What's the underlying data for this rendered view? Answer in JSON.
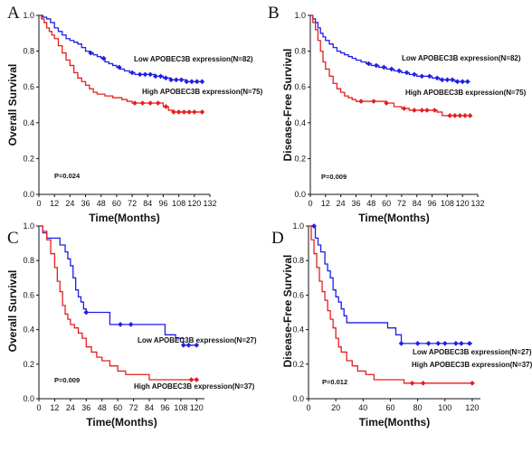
{
  "colors": {
    "low": "#1f1fe6",
    "high": "#e61f1f",
    "axis": "#111111"
  },
  "chart_data": [
    {
      "panel": "A",
      "type": "line",
      "step": true,
      "xlabel": "Time(Months)",
      "ylabel": "Overall Survival",
      "xlim": [
        0,
        132
      ],
      "ylim": [
        0,
        1.0
      ],
      "xticks": [
        0,
        12,
        24,
        36,
        48,
        60,
        72,
        84,
        96,
        108,
        120,
        132
      ],
      "yticks": [
        0.0,
        0.2,
        0.4,
        0.6,
        0.8,
        1.0
      ],
      "ytick_decimals": 1,
      "pvalue": "P=0.024",
      "series": [
        {
          "name": "Low APOBEC3B expression(N=82)",
          "color_key": "low",
          "x": [
            0,
            3,
            6,
            9,
            12,
            15,
            18,
            21,
            24,
            27,
            30,
            33,
            36,
            39,
            42,
            45,
            48,
            51,
            54,
            57,
            60,
            63,
            66,
            70,
            74,
            78,
            84,
            90,
            96,
            102,
            108,
            114,
            120,
            126
          ],
          "y": [
            1.0,
            0.99,
            0.98,
            0.96,
            0.93,
            0.91,
            0.89,
            0.87,
            0.86,
            0.85,
            0.84,
            0.82,
            0.8,
            0.79,
            0.78,
            0.77,
            0.76,
            0.74,
            0.73,
            0.72,
            0.71,
            0.7,
            0.69,
            0.68,
            0.67,
            0.67,
            0.67,
            0.66,
            0.65,
            0.64,
            0.64,
            0.63,
            0.63,
            0.63
          ],
          "censored_x": [
            40,
            50,
            62,
            72,
            78,
            82,
            86,
            90,
            94,
            98,
            102,
            106,
            110,
            114,
            118,
            122,
            126
          ]
        },
        {
          "name": "High APOBEC3B expression(N=75)",
          "color_key": "high",
          "x": [
            0,
            2,
            4,
            6,
            8,
            10,
            12,
            15,
            18,
            21,
            24,
            27,
            30,
            33,
            36,
            39,
            42,
            45,
            48,
            51,
            54,
            57,
            60,
            64,
            68,
            72,
            76,
            84,
            96,
            100,
            104,
            120,
            126
          ],
          "y": [
            1.0,
            0.98,
            0.96,
            0.93,
            0.91,
            0.89,
            0.87,
            0.83,
            0.79,
            0.75,
            0.72,
            0.68,
            0.65,
            0.63,
            0.61,
            0.59,
            0.57,
            0.56,
            0.56,
            0.55,
            0.55,
            0.54,
            0.54,
            0.53,
            0.52,
            0.51,
            0.51,
            0.51,
            0.49,
            0.47,
            0.46,
            0.46,
            0.46
          ],
          "censored_x": [
            74,
            80,
            86,
            92,
            98,
            104,
            108,
            112,
            116,
            120,
            126
          ]
        }
      ]
    },
    {
      "panel": "B",
      "type": "line",
      "step": true,
      "xlabel": "Time(Months)",
      "ylabel": "Disease-Free Survival",
      "xlim": [
        0,
        132
      ],
      "ylim": [
        0,
        1.0
      ],
      "xticks": [
        0,
        12,
        24,
        36,
        48,
        60,
        72,
        84,
        96,
        108,
        120,
        132
      ],
      "yticks": [
        0.0,
        0.2,
        0.4,
        0.6,
        0.8,
        1.0
      ],
      "ytick_decimals": 1,
      "pvalue": "P=0.009",
      "series": [
        {
          "name": "Low APOBEC3B expression(N=82)",
          "color_key": "low",
          "x": [
            0,
            2,
            4,
            6,
            8,
            10,
            12,
            15,
            18,
            21,
            24,
            27,
            30,
            33,
            36,
            40,
            44,
            48,
            54,
            60,
            66,
            72,
            78,
            84,
            90,
            96,
            102,
            108,
            114,
            120,
            126
          ],
          "y": [
            1.0,
            0.98,
            0.96,
            0.93,
            0.9,
            0.88,
            0.86,
            0.84,
            0.82,
            0.8,
            0.79,
            0.78,
            0.77,
            0.76,
            0.75,
            0.74,
            0.73,
            0.72,
            0.71,
            0.7,
            0.69,
            0.68,
            0.67,
            0.66,
            0.66,
            0.65,
            0.64,
            0.64,
            0.63,
            0.63,
            0.63
          ],
          "censored_x": [
            46,
            52,
            58,
            64,
            70,
            76,
            82,
            88,
            94,
            100,
            104,
            108,
            112,
            116,
            120,
            124
          ]
        },
        {
          "name": "High APOBEC3B expression(N=75)",
          "color_key": "high",
          "x": [
            0,
            2,
            4,
            6,
            8,
            10,
            12,
            15,
            18,
            21,
            24,
            27,
            30,
            33,
            36,
            40,
            44,
            48,
            54,
            60,
            66,
            72,
            78,
            84,
            90,
            96,
            100,
            104,
            110,
            126
          ],
          "y": [
            1.0,
            0.96,
            0.92,
            0.86,
            0.8,
            0.74,
            0.7,
            0.66,
            0.62,
            0.59,
            0.57,
            0.55,
            0.54,
            0.53,
            0.52,
            0.52,
            0.52,
            0.52,
            0.52,
            0.51,
            0.49,
            0.48,
            0.47,
            0.47,
            0.47,
            0.47,
            0.46,
            0.44,
            0.44,
            0.44
          ],
          "censored_x": [
            40,
            50,
            60,
            74,
            82,
            88,
            92,
            98,
            110,
            114,
            118,
            122,
            126
          ]
        }
      ]
    },
    {
      "panel": "C",
      "type": "line",
      "step": true,
      "xlabel": "Time(Months)",
      "ylabel": "Overall Survival",
      "xlim": [
        0,
        126
      ],
      "ylim": [
        0,
        1.0
      ],
      "xticks": [
        0,
        12,
        24,
        36,
        48,
        60,
        72,
        84,
        96,
        108,
        120
      ],
      "yticks": [
        0.0,
        0.2,
        0.4,
        0.6,
        0.8,
        1.0
      ],
      "ytick_decimals": 1,
      "pvalue": "P=0.009",
      "series": [
        {
          "name": "Low  APOBEC3B expression(N=27)",
          "color_key": "low",
          "x": [
            0,
            3,
            6,
            9,
            12,
            16,
            20,
            22,
            24,
            26,
            28,
            30,
            32,
            34,
            36,
            40,
            44,
            50,
            54,
            60,
            66,
            72,
            78,
            84,
            90,
            96,
            100,
            104,
            110,
            120
          ],
          "y": [
            1.0,
            0.96,
            0.93,
            0.93,
            0.93,
            0.89,
            0.85,
            0.81,
            0.77,
            0.7,
            0.63,
            0.59,
            0.56,
            0.52,
            0.5,
            0.5,
            0.5,
            0.5,
            0.43,
            0.43,
            0.43,
            0.43,
            0.43,
            0.43,
            0.43,
            0.37,
            0.37,
            0.35,
            0.31,
            0.31
          ],
          "censored_x": [
            36,
            62,
            70,
            110,
            114,
            120
          ]
        },
        {
          "name": "High APOBEC3B expression(N=37)",
          "color_key": "high",
          "x": [
            0,
            3,
            6,
            9,
            12,
            14,
            16,
            18,
            20,
            22,
            24,
            27,
            30,
            33,
            36,
            40,
            44,
            48,
            54,
            60,
            66,
            72,
            78,
            84,
            90,
            96,
            100,
            104,
            110,
            120
          ],
          "y": [
            1.0,
            0.97,
            0.92,
            0.84,
            0.76,
            0.68,
            0.62,
            0.54,
            0.49,
            0.46,
            0.43,
            0.41,
            0.38,
            0.35,
            0.3,
            0.27,
            0.24,
            0.22,
            0.19,
            0.16,
            0.14,
            0.14,
            0.14,
            0.11,
            0.11,
            0.11,
            0.11,
            0.11,
            0.11,
            0.11
          ],
          "censored_x": [
            116,
            120
          ]
        }
      ]
    },
    {
      "panel": "D",
      "type": "line",
      "step": true,
      "xlabel": "Time(Months)",
      "ylabel": "Disease-Free Survival",
      "xlim": [
        0,
        126
      ],
      "ylim": [
        0,
        1.0
      ],
      "xticks": [
        0,
        20,
        40,
        60,
        80,
        100,
        120
      ],
      "yticks": [
        0.0,
        0.2,
        0.4,
        0.6,
        0.8,
        1.0
      ],
      "ytick_decimals": 1,
      "pvalue": "P=0.012",
      "series": [
        {
          "name": "Low APOBEC3B expression(N=27)",
          "color_key": "low",
          "x": [
            0,
            3,
            5,
            7,
            9,
            12,
            14,
            16,
            18,
            20,
            22,
            24,
            26,
            28,
            30,
            34,
            40,
            46,
            52,
            58,
            64,
            68,
            80,
            120
          ],
          "y": [
            1.0,
            1.0,
            0.93,
            0.89,
            0.85,
            0.78,
            0.74,
            0.7,
            0.63,
            0.59,
            0.56,
            0.52,
            0.48,
            0.44,
            0.44,
            0.44,
            0.44,
            0.44,
            0.44,
            0.41,
            0.37,
            0.32,
            0.32,
            0.32
          ],
          "censored_x": [
            4,
            68,
            80,
            88,
            95,
            100,
            108,
            112,
            118
          ]
        },
        {
          "name": "High APOBEC3B expression(N=37)",
          "color_key": "high",
          "x": [
            0,
            2,
            4,
            6,
            8,
            10,
            12,
            14,
            16,
            18,
            20,
            22,
            24,
            28,
            32,
            36,
            42,
            48,
            60,
            70,
            120
          ],
          "y": [
            1.0,
            0.92,
            0.84,
            0.76,
            0.68,
            0.62,
            0.57,
            0.51,
            0.46,
            0.41,
            0.35,
            0.3,
            0.27,
            0.22,
            0.19,
            0.16,
            0.14,
            0.11,
            0.11,
            0.09,
            0.09
          ],
          "censored_x": [
            76,
            84,
            120
          ]
        }
      ]
    }
  ]
}
